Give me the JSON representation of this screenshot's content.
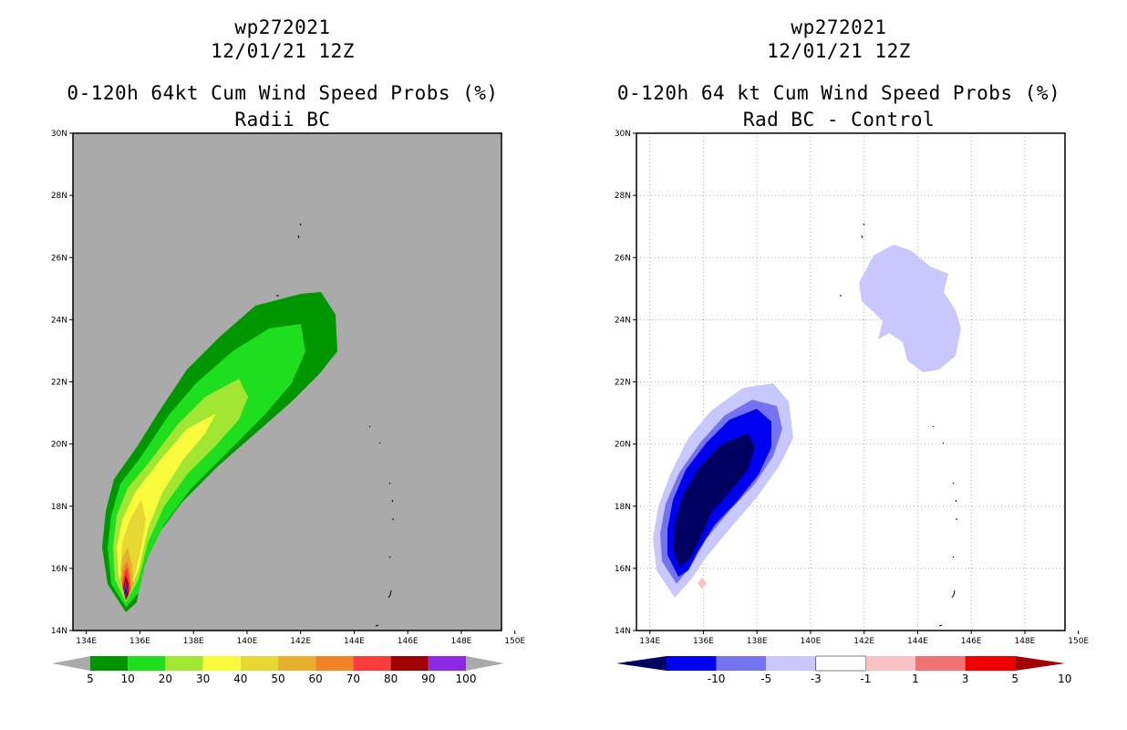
{
  "chart_data": [
    {
      "type": "contour-map",
      "storm_id": "wp272021",
      "datetime": "12/01/21 12Z",
      "title": "0-120h 64kt Cum Wind Speed Probs (%)",
      "subtitle": "Radii BC",
      "x_ticks": [
        "134E",
        "136E",
        "138E",
        "140E",
        "142E",
        "144E",
        "146E",
        "148E",
        "150E"
      ],
      "y_ticks": [
        "14N",
        "16N",
        "18N",
        "20N",
        "22N",
        "24N",
        "26N",
        "28N",
        "30N"
      ],
      "xlim": [
        133.5,
        149.5
      ],
      "ylim": [
        14,
        30
      ],
      "grid": false,
      "background_color": "#aaaaaa",
      "colorbar": {
        "labels": [
          "5",
          "10",
          "20",
          "30",
          "40",
          "50",
          "60",
          "70",
          "80",
          "90",
          "100"
        ],
        "colors": [
          "#009600",
          "#1ede1e",
          "#a0e632",
          "#fafa3c",
          "#e6d732",
          "#e6af2d",
          "#f08228",
          "#fa3c3c",
          "#a00000",
          "#8c28e6"
        ]
      }
    },
    {
      "type": "contour-map",
      "storm_id": "wp272021",
      "datetime": "12/01/21 12Z",
      "title": "0-120h 64 kt Cum Wind Speed Probs (%)",
      "subtitle": "Rad BC - Control",
      "x_ticks": [
        "134E",
        "136E",
        "138E",
        "140E",
        "142E",
        "144E",
        "146E",
        "148E",
        "150E"
      ],
      "y_ticks": [
        "14N",
        "16N",
        "18N",
        "20N",
        "22N",
        "24N",
        "26N",
        "28N",
        "30N"
      ],
      "xlim": [
        133.5,
        149.5
      ],
      "ylim": [
        14,
        30
      ],
      "grid": true,
      "background_color": "#ffffff",
      "colorbar": {
        "labels": [
          "-10",
          "-5",
          "-3",
          "-1",
          "1",
          "3",
          "5",
          "10"
        ],
        "colors": [
          "#000060",
          "#0000f0",
          "#7373f0",
          "#c8c8ff",
          "#ffffff",
          "#fac3c3",
          "#f07373",
          "#f00000",
          "#a00000"
        ]
      }
    }
  ]
}
